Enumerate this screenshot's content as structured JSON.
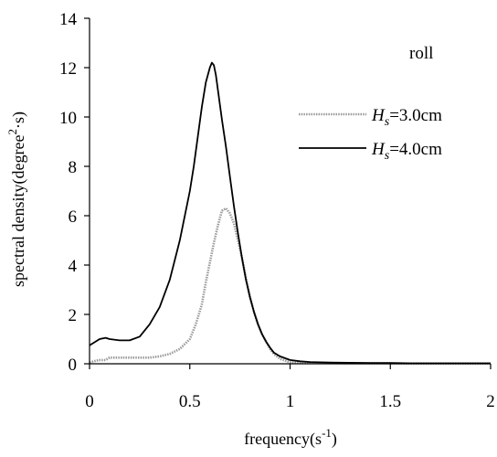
{
  "chart_data": {
    "type": "line",
    "xlabel": "frequency(s⁻¹)",
    "ylabel": "spectral density(degree²·s)",
    "xlim": [
      0,
      2
    ],
    "ylim": [
      0,
      14
    ],
    "xticks": [
      0,
      0.5,
      1,
      1.5,
      2
    ],
    "xtick_labels": [
      "0",
      "0.5",
      "1",
      "1.5",
      "2"
    ],
    "yticks": [
      0,
      2,
      4,
      6,
      8,
      10,
      12,
      14
    ],
    "ytick_labels": [
      "0",
      "2",
      "4",
      "6",
      "8",
      "10",
      "12",
      "14"
    ],
    "grid": false,
    "legend_position": "top-right",
    "annotation": "roll",
    "series": [
      {
        "name": "Hs=3.0cm",
        "name_main": "H",
        "name_sub": "s",
        "name_rest": "=3.0cm",
        "color": "#9a9a9a",
        "style": "dotted",
        "x": [
          0.0,
          0.02,
          0.05,
          0.08,
          0.1,
          0.15,
          0.2,
          0.25,
          0.3,
          0.35,
          0.4,
          0.45,
          0.5,
          0.53,
          0.56,
          0.58,
          0.6,
          0.62,
          0.64,
          0.66,
          0.68,
          0.7,
          0.72,
          0.74,
          0.76,
          0.78,
          0.8,
          0.82,
          0.84,
          0.86,
          0.88,
          0.9,
          0.92,
          0.95,
          1.0,
          1.05,
          1.1,
          1.2,
          1.3,
          1.4,
          1.5,
          1.6,
          1.7,
          1.8,
          1.9,
          2.0
        ],
        "y": [
          0.05,
          0.1,
          0.15,
          0.15,
          0.25,
          0.25,
          0.25,
          0.25,
          0.25,
          0.3,
          0.4,
          0.6,
          1.0,
          1.6,
          2.4,
          3.3,
          4.1,
          4.9,
          5.6,
          6.2,
          6.3,
          6.1,
          5.7,
          5.0,
          4.3,
          3.5,
          2.7,
          2.1,
          1.6,
          1.2,
          0.9,
          0.6,
          0.4,
          0.2,
          0.06,
          0.04,
          0.03,
          0.03,
          0.02,
          0.02,
          0.02,
          0.01,
          0.01,
          0.01,
          0.01,
          0.01
        ]
      },
      {
        "name": "Hs=4.0cm",
        "name_main": "H",
        "name_sub": "s",
        "name_rest": "=4.0cm",
        "color": "#000000",
        "style": "solid",
        "x": [
          0.0,
          0.02,
          0.05,
          0.08,
          0.1,
          0.15,
          0.2,
          0.25,
          0.3,
          0.35,
          0.4,
          0.45,
          0.5,
          0.52,
          0.54,
          0.56,
          0.58,
          0.6,
          0.61,
          0.62,
          0.63,
          0.64,
          0.65,
          0.66,
          0.68,
          0.7,
          0.72,
          0.74,
          0.76,
          0.78,
          0.8,
          0.82,
          0.84,
          0.86,
          0.88,
          0.9,
          0.92,
          0.95,
          1.0,
          1.05,
          1.1,
          1.2,
          1.3,
          1.4,
          1.5,
          1.6,
          1.7,
          1.8,
          1.9,
          2.0
        ],
        "y": [
          0.75,
          0.85,
          1.0,
          1.05,
          1.0,
          0.95,
          0.95,
          1.1,
          1.6,
          2.3,
          3.4,
          5.0,
          7.0,
          8.0,
          9.2,
          10.4,
          11.4,
          12.0,
          12.2,
          12.1,
          11.7,
          11.1,
          10.5,
          9.9,
          8.8,
          7.6,
          6.4,
          5.3,
          4.3,
          3.4,
          2.7,
          2.1,
          1.6,
          1.2,
          0.9,
          0.65,
          0.45,
          0.3,
          0.15,
          0.1,
          0.07,
          0.05,
          0.04,
          0.03,
          0.03,
          0.02,
          0.02,
          0.02,
          0.02,
          0.02
        ]
      }
    ]
  }
}
